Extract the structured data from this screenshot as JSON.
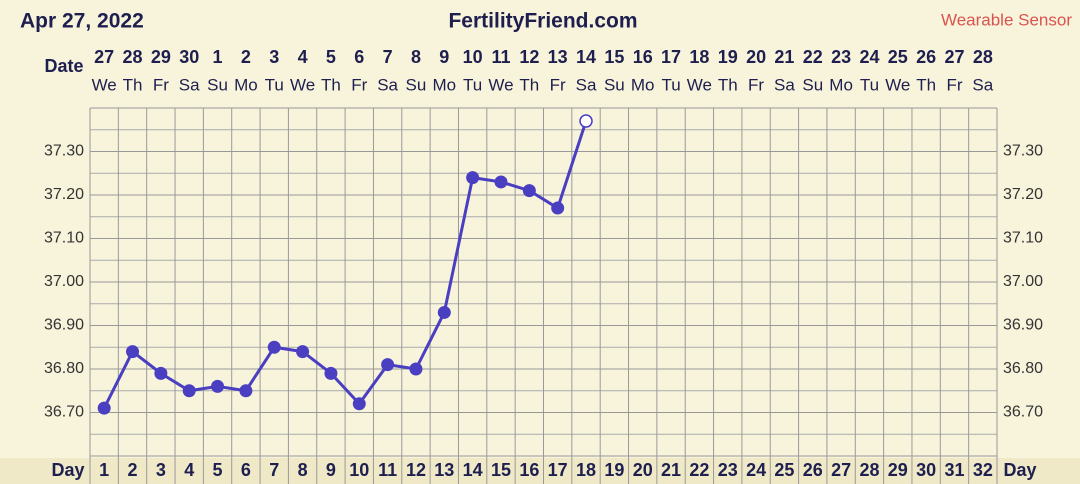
{
  "chart_data": {
    "type": "line",
    "title": "FertilityFriend.com",
    "date_label": "Apr 27, 2022",
    "source_label": "Wearable Sensor",
    "date_row_label": "Date",
    "day_row_label": "Day",
    "dates": [
      "27",
      "28",
      "29",
      "30",
      "1",
      "2",
      "3",
      "4",
      "5",
      "6",
      "7",
      "8",
      "9",
      "10",
      "11",
      "12",
      "13",
      "14",
      "15",
      "16",
      "17",
      "18",
      "19",
      "20",
      "21",
      "22",
      "23",
      "24",
      "25",
      "26",
      "27",
      "28"
    ],
    "weekdays": [
      "We",
      "Th",
      "Fr",
      "Sa",
      "Su",
      "Mo",
      "Tu",
      "We",
      "Th",
      "Fr",
      "Sa",
      "Su",
      "Mo",
      "Tu",
      "We",
      "Th",
      "Fr",
      "Sa",
      "Su",
      "Mo",
      "Tu",
      "We",
      "Th",
      "Fr",
      "Sa",
      "Su",
      "Mo",
      "Tu",
      "We",
      "Th",
      "Fr",
      "Sa"
    ],
    "categories": [
      1,
      2,
      3,
      4,
      5,
      6,
      7,
      8,
      9,
      10,
      11,
      12,
      13,
      14,
      15,
      16,
      17,
      18,
      19,
      20,
      21,
      22,
      23,
      24,
      25,
      26,
      27,
      28,
      29,
      30,
      31,
      32
    ],
    "series": [
      {
        "color": "#4a3fc1",
        "values": [
          36.71,
          36.84,
          36.79,
          36.75,
          36.76,
          36.75,
          36.85,
          36.84,
          36.79,
          36.72,
          36.81,
          36.8,
          36.93,
          37.24,
          37.23,
          37.21,
          37.17,
          37.37,
          null,
          null,
          null,
          null,
          null,
          null,
          null,
          null,
          null,
          null,
          null,
          null,
          null,
          null
        ]
      }
    ],
    "hollow_last": true,
    "ylim": [
      36.6,
      37.4
    ],
    "yticks": [
      {
        "value": 36.7,
        "label": "36.70"
      },
      {
        "value": 36.8,
        "label": "36.80"
      },
      {
        "value": 36.9,
        "label": "36.90"
      },
      {
        "value": 37.0,
        "label": "37.00"
      },
      {
        "value": 37.1,
        "label": "37.10"
      },
      {
        "value": 37.2,
        "label": "37.20"
      },
      {
        "value": 37.3,
        "label": "37.30"
      }
    ],
    "grid": true
  }
}
